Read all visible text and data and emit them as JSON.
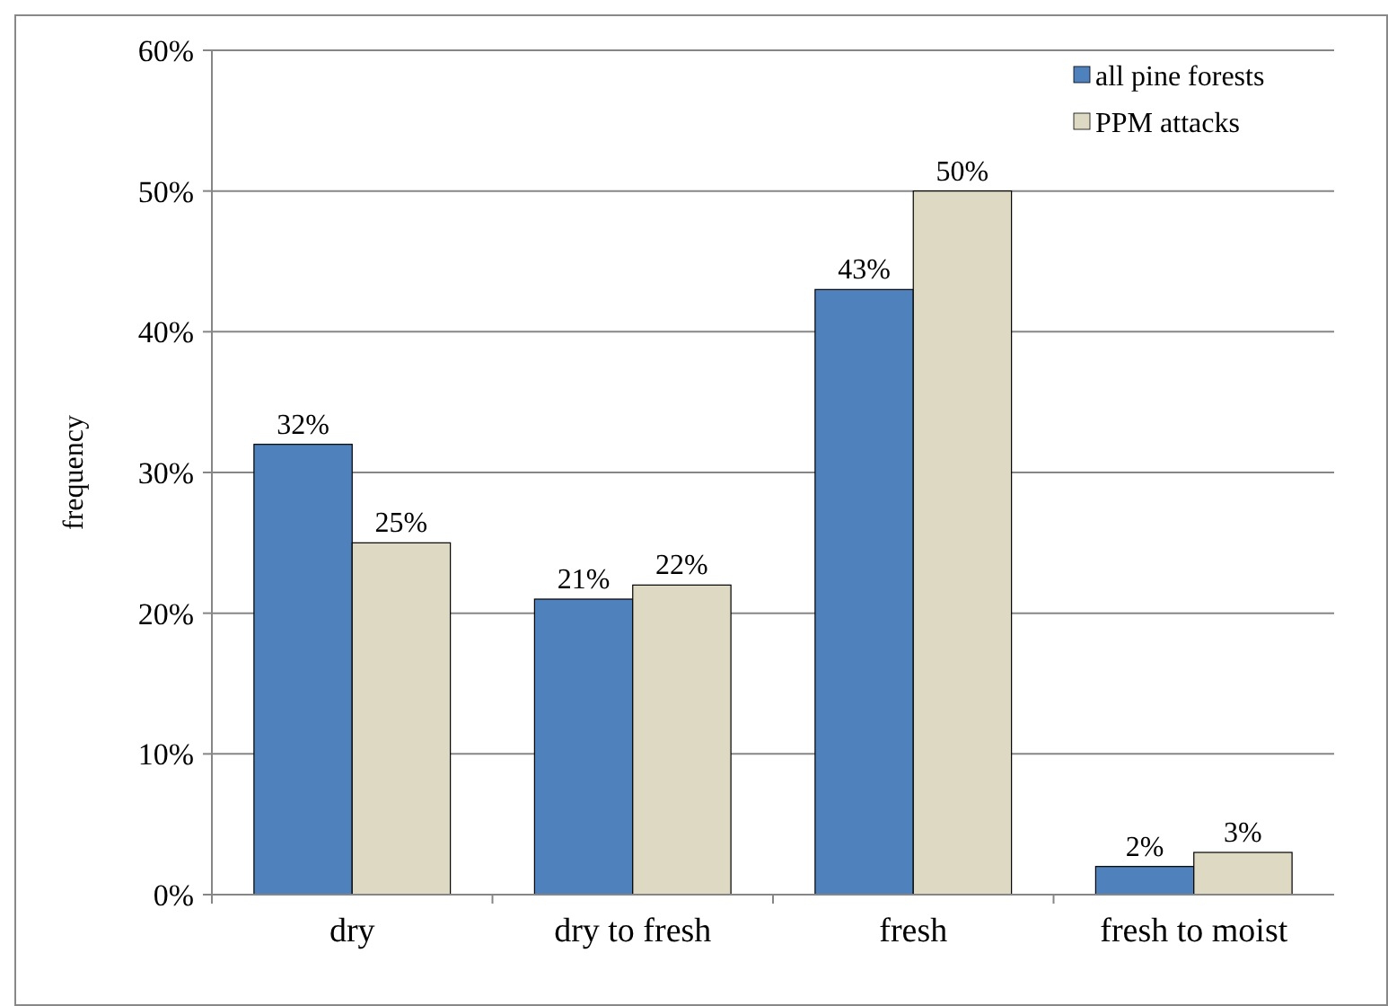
{
  "chart_data": {
    "type": "bar",
    "ylabel": "frequency",
    "categories": [
      "dry",
      "dry to fresh",
      "fresh",
      "fresh to moist"
    ],
    "series": [
      {
        "name": "all pine forests",
        "color": "#4f81bd",
        "values": [
          32,
          21,
          43,
          2
        ],
        "value_labels": [
          "32%",
          "21%",
          "43%",
          "2%"
        ]
      },
      {
        "name": "PPM attacks",
        "color": "#ddd9c3",
        "values": [
          25,
          22,
          50,
          3
        ],
        "value_labels": [
          "25%",
          "22%",
          "50%",
          "3%"
        ]
      }
    ],
    "ylim": [
      0,
      60
    ],
    "yticks": [
      {
        "value": 0,
        "label": "0%"
      },
      {
        "value": 10,
        "label": "10%"
      },
      {
        "value": 20,
        "label": "20%"
      },
      {
        "value": 30,
        "label": "30%"
      },
      {
        "value": 40,
        "label": "40%"
      },
      {
        "value": 50,
        "label": "50%"
      },
      {
        "value": 60,
        "label": "60%"
      }
    ],
    "grid": "y",
    "legend": "top right"
  }
}
